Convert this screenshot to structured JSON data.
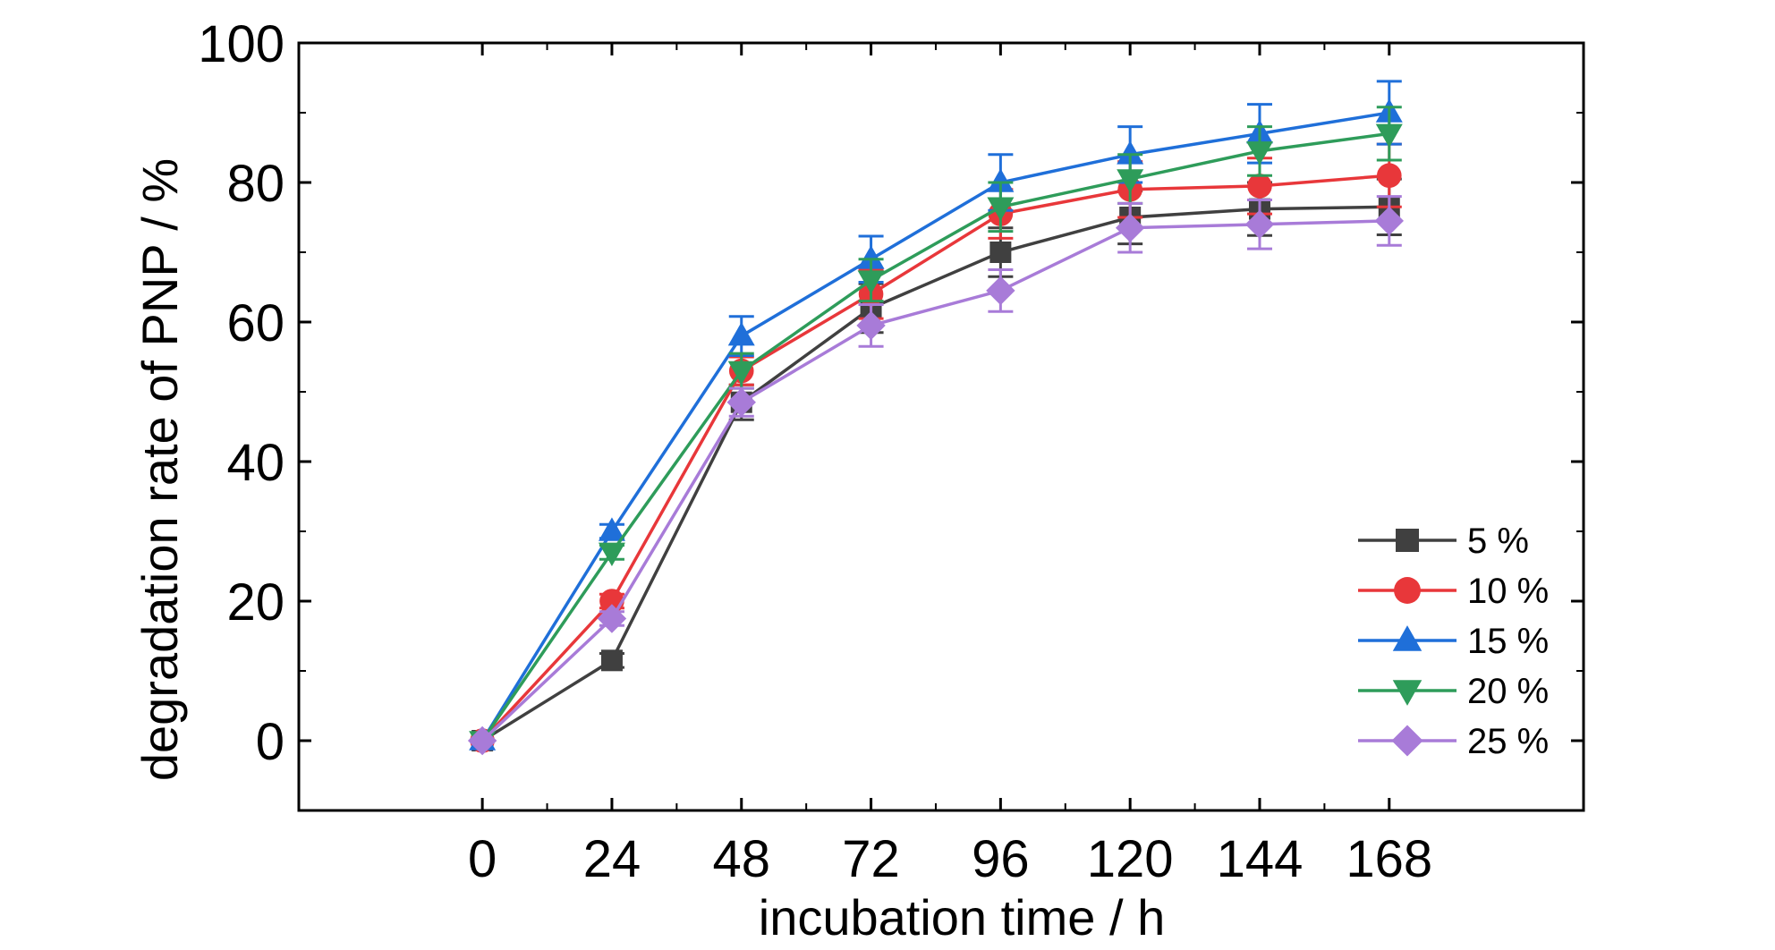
{
  "chart_data": {
    "type": "line",
    "xlabel": "incubation time / h",
    "ylabel": "degradation rate of PNP / %",
    "xlim": [
      -34,
      204
    ],
    "ylim": [
      -10,
      100
    ],
    "x_ticks": [
      0,
      24,
      48,
      72,
      96,
      120,
      144,
      168
    ],
    "y_ticks": [
      0,
      20,
      40,
      60,
      80,
      100
    ],
    "x": [
      0,
      24,
      48,
      72,
      96,
      120,
      144,
      168
    ],
    "legend_position": "lower-right",
    "grid": false,
    "series": [
      {
        "name": "5 %",
        "color": "#404040",
        "marker": "square",
        "values": [
          0,
          11.5,
          48.5,
          62.0,
          70.0,
          75.0,
          76.2,
          76.5
        ],
        "errors": [
          0,
          1.0,
          2.5,
          3.5,
          3.5,
          3.8,
          3.8,
          4.0
        ]
      },
      {
        "name": "10 %",
        "color": "#e8373a",
        "marker": "circle",
        "values": [
          0,
          20.0,
          53.0,
          64.0,
          75.5,
          79.0,
          79.5,
          81.0
        ],
        "errors": [
          0,
          1.0,
          2.0,
          3.5,
          3.5,
          4.0,
          4.0,
          4.5
        ]
      },
      {
        "name": "15 %",
        "color": "#1f6fd9",
        "marker": "triangle-up",
        "values": [
          0,
          30.0,
          58.0,
          69.0,
          80.0,
          84.0,
          87.0,
          90.0
        ],
        "errors": [
          0,
          1.0,
          2.8,
          3.3,
          4.0,
          4.0,
          4.2,
          4.5
        ]
      },
      {
        "name": "20 %",
        "color": "#2e9c5a",
        "marker": "triangle-down",
        "values": [
          0,
          27.0,
          53.0,
          66.0,
          76.5,
          80.5,
          84.5,
          87.0
        ],
        "errors": [
          0,
          1.0,
          2.5,
          3.0,
          3.5,
          3.5,
          3.5,
          3.8
        ]
      },
      {
        "name": "25 %",
        "color": "#a87bd8",
        "marker": "diamond",
        "values": [
          0,
          17.5,
          48.5,
          59.5,
          64.5,
          73.5,
          74.0,
          74.5
        ],
        "errors": [
          0,
          1.0,
          2.0,
          3.0,
          3.0,
          3.5,
          3.5,
          3.5
        ]
      }
    ]
  }
}
